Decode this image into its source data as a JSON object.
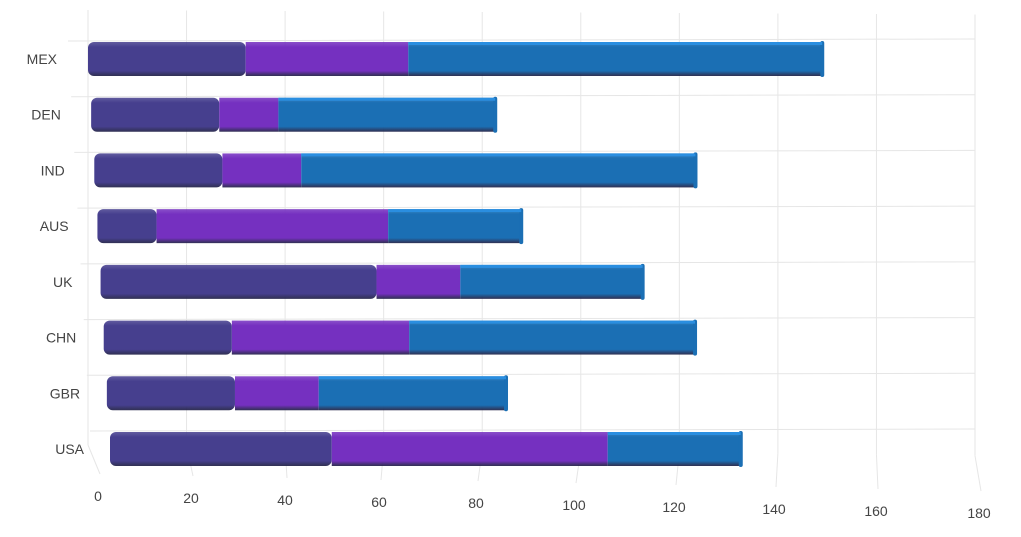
{
  "chart_data": {
    "type": "bar",
    "orientation": "horizontal",
    "stacked": true,
    "style": "3d-cylinder",
    "categories": [
      "MEX",
      "DEN",
      "IND",
      "AUS",
      "UK",
      "CHN",
      "GBR",
      "USA"
    ],
    "series": [
      {
        "values": [
          32,
          26,
          26,
          12,
          56,
          26,
          26,
          45
        ]
      },
      {
        "values": [
          33,
          12,
          16,
          47,
          17,
          36,
          17,
          56
        ]
      },
      {
        "values": [
          84,
          44,
          80,
          27,
          37,
          58,
          38,
          27
        ]
      }
    ],
    "x_ticks": [
      "0",
      "20",
      "40",
      "60",
      "80",
      "100",
      "120",
      "140",
      "160",
      "180"
    ],
    "xlim": [
      0,
      180
    ],
    "grid": true,
    "legend": "none",
    "title": "",
    "xlabel": "",
    "ylabel": "",
    "colors": [
      "#463f8e",
      "#7530c0",
      "#1b6fb4"
    ]
  }
}
